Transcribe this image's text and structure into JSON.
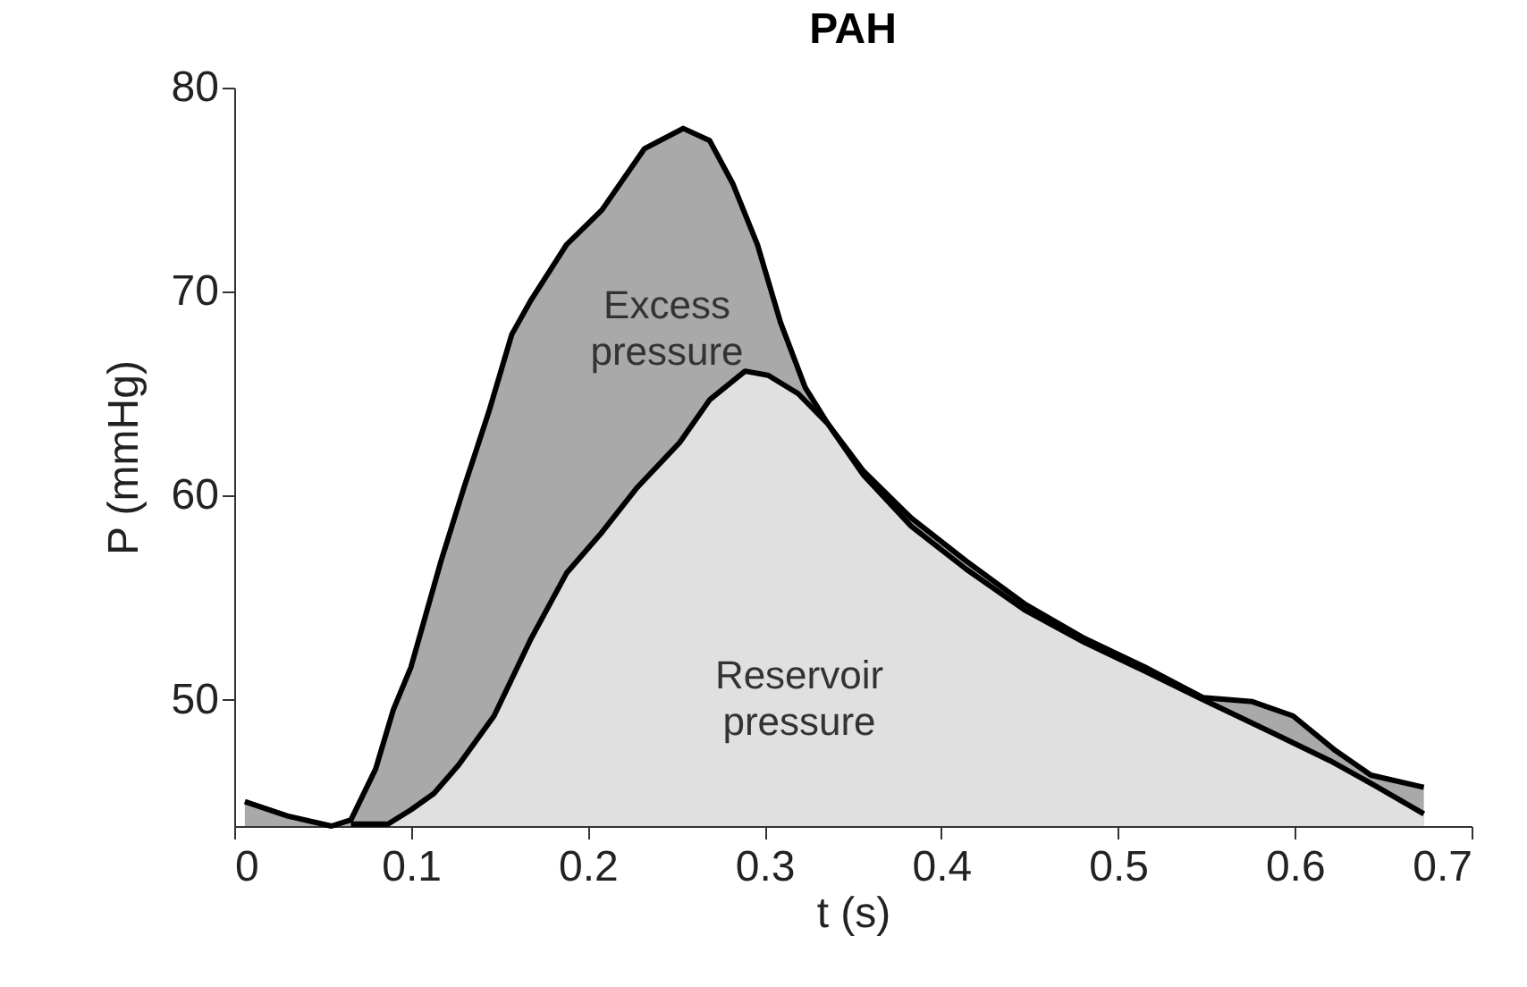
{
  "chart_data": {
    "type": "area",
    "title": "PAH",
    "xlabel": "t (s)",
    "ylabel": "P (mmHg)",
    "xlim": [
      0,
      0.7
    ],
    "xticks": [
      0,
      0.1,
      0.2,
      0.3,
      0.4,
      0.5,
      0.6,
      0.7
    ],
    "ylim": [
      43.8,
      80
    ],
    "yticks": [
      50,
      60,
      70,
      80
    ],
    "grid": false,
    "series": [
      {
        "color": "#a9a9a9",
        "x": [
          0.006,
          0.03,
          0.055,
          0.066,
          0.08,
          0.09,
          0.1,
          0.117,
          0.13,
          0.144,
          0.157,
          0.168,
          0.188,
          0.208,
          0.232,
          0.254,
          0.269,
          0.282,
          0.296,
          0.309,
          0.323,
          0.336,
          0.356,
          0.383,
          0.414,
          0.447,
          0.481,
          0.515,
          0.548,
          0.576,
          0.599,
          0.623,
          0.643,
          0.673
        ],
        "values": [
          45.0,
          44.3,
          43.8,
          44.1,
          46.6,
          49.5,
          51.6,
          56.8,
          60.4,
          64.1,
          67.9,
          69.6,
          72.3,
          74.0,
          77.0,
          78.0,
          77.4,
          75.3,
          72.3,
          68.5,
          65.3,
          63.5,
          61.2,
          58.9,
          56.8,
          54.7,
          53.0,
          51.6,
          50.1,
          49.9,
          49.2,
          47.5,
          46.3,
          45.7
        ]
      },
      {
        "color": "#e0e0e0",
        "x": [
          0.066,
          0.087,
          0.1,
          0.113,
          0.127,
          0.147,
          0.168,
          0.188,
          0.208,
          0.228,
          0.252,
          0.269,
          0.289,
          0.302,
          0.319,
          0.336,
          0.356,
          0.383,
          0.414,
          0.447,
          0.481,
          0.515,
          0.548,
          0.589,
          0.62,
          0.645,
          0.673
        ],
        "values": [
          43.9,
          43.9,
          44.6,
          45.4,
          46.8,
          49.2,
          53.0,
          56.2,
          58.2,
          60.4,
          62.6,
          64.7,
          66.1,
          65.9,
          65.0,
          63.5,
          61.0,
          58.5,
          56.4,
          54.4,
          52.8,
          51.4,
          50.0,
          48.3,
          47.0,
          45.8,
          44.4
        ]
      }
    ],
    "annotations": [
      "Excess pressure",
      "Reservoir pressure"
    ]
  }
}
